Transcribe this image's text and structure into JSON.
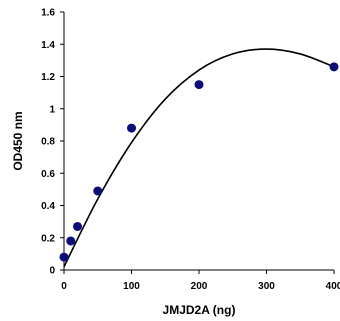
{
  "chart_data": {
    "type": "scatter",
    "title": "",
    "xlabel": "JMJD2A (ng)",
    "ylabel": "OD450 nm",
    "xlim": [
      0,
      400
    ],
    "ylim": [
      0,
      1.6
    ],
    "x_ticks": [
      0,
      100,
      200,
      300,
      400
    ],
    "y_ticks": [
      0,
      0.2,
      0.4,
      0.6,
      0.8,
      1,
      1.2,
      1.4,
      1.6
    ],
    "x_tick_labels": [
      "0",
      "100",
      "200",
      "300",
      "400"
    ],
    "y_tick_labels": [
      "0",
      "0.2",
      "0.4",
      "0.6",
      "0.8",
      "1",
      "1.2",
      "1.4",
      "1.6"
    ],
    "grid": false,
    "legend": "none",
    "series": [
      {
        "x": [
          0,
          10,
          20,
          50,
          100,
          200,
          400
        ],
        "y": [
          0.08,
          0.18,
          0.27,
          0.49,
          0.88,
          1.15,
          1.26
        ],
        "color": "#0d0d7a",
        "marker": "circle"
      }
    ],
    "trendline": {
      "type": "polynomial",
      "degree": 2,
      "x": [
        0,
        50,
        100,
        150,
        200,
        250,
        300,
        350,
        400
      ],
      "y": [
        0.02,
        0.44,
        0.79,
        1.06,
        1.24,
        1.34,
        1.37,
        1.34,
        1.26
      ],
      "color": "#000000"
    }
  }
}
